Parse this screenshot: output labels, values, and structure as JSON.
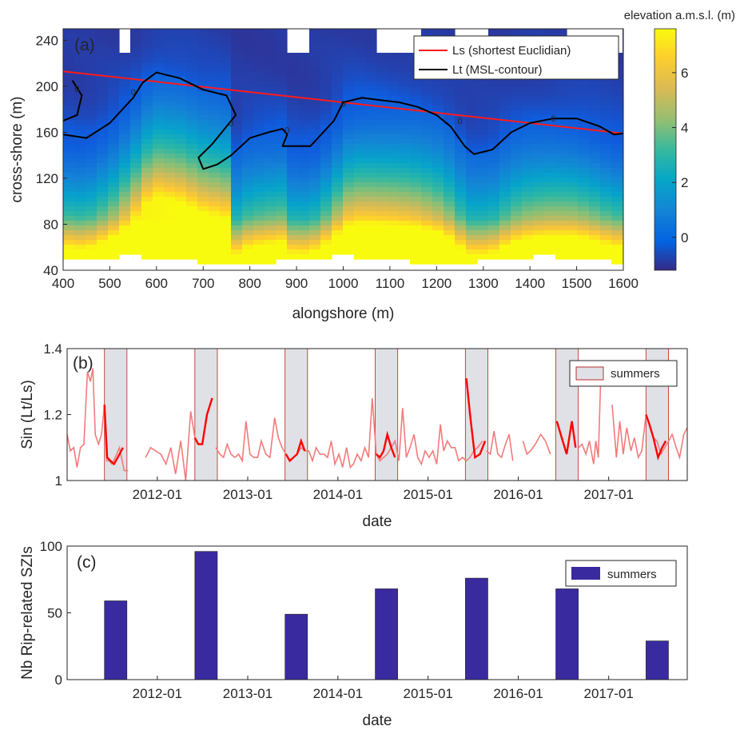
{
  "chart_data": [
    {
      "panel": "(a)",
      "type": "heatmap",
      "xlabel": "alongshore (m)",
      "ylabel": "cross-shore (m)",
      "xlim": [
        400,
        1600
      ],
      "ylim": [
        40,
        250
      ],
      "xticks": [
        400,
        500,
        600,
        700,
        800,
        900,
        1000,
        1100,
        1200,
        1300,
        1400,
        1500,
        1600
      ],
      "yticks": [
        40,
        80,
        120,
        160,
        200,
        240
      ],
      "colorbar": {
        "label": "elevation a.m.s.l. (m)",
        "range": [
          -1.2,
          7.6
        ],
        "ticks": [
          0,
          2,
          4,
          6
        ],
        "colormap": "parula"
      },
      "legend": [
        {
          "label": "Ls (shortest Euclidian)",
          "color": "#ff1a1a"
        },
        {
          "label": "Lt (MSL-contour)",
          "color": "#000000"
        }
      ],
      "contour_label": "0",
      "Ls": {
        "x": [
          400,
          1600
        ],
        "y": [
          213,
          159
        ]
      },
      "Lt": {
        "x": [
          400,
          450,
          500,
          550,
          570,
          600,
          650,
          700,
          750,
          770,
          720,
          690,
          700,
          730,
          760,
          800,
          840,
          870,
          880,
          870,
          930,
          980,
          1000,
          1040,
          1080,
          1120,
          1160,
          1200,
          1230,
          1260,
          1280,
          1320,
          1360,
          1400,
          1450,
          1500,
          1550,
          1580,
          1600
        ],
        "y": [
          158,
          155,
          168,
          190,
          203,
          212,
          207,
          197,
          192,
          175,
          150,
          138,
          128,
          132,
          140,
          155,
          160,
          163,
          158,
          148,
          148,
          170,
          186,
          190,
          188,
          186,
          182,
          175,
          165,
          148,
          141,
          145,
          160,
          168,
          172,
          172,
          165,
          158,
          159
        ]
      },
      "terrain_colors": [
        "#352a87",
        "#0f5cdd",
        "#1481d6",
        "#06a4ca",
        "#2eb7a4",
        "#87bf77",
        "#d1bb59",
        "#fec832",
        "#f9fb0e"
      ],
      "background_color": "#ffffff"
    },
    {
      "panel": "(b)",
      "type": "line",
      "xlabel": "date",
      "ylabel": "Sin (Lt/Ls)",
      "ylim": [
        1,
        1.4
      ],
      "yticks": [
        1,
        1.2,
        1.4
      ],
      "yticklabels": [
        "1",
        "1.2",
        "1.4"
      ],
      "xlim": [
        "2011-01-01",
        "2017-11-15"
      ],
      "xticks": [
        "2012-01-01",
        "2013-01-01",
        "2014-01-01",
        "2015-01-01",
        "2016-01-01",
        "2017-01-01"
      ],
      "xticklabels": [
        "2012-01",
        "2013-01",
        "2014-01",
        "2015-01",
        "2016-01",
        "2017-01"
      ],
      "legend": [
        {
          "label": "summers",
          "color": "#dfe1e6"
        }
      ],
      "summers": [
        [
          "2011-06-01",
          "2011-08-31"
        ],
        [
          "2012-06-01",
          "2012-08-31"
        ],
        [
          "2013-06-01",
          "2013-08-31"
        ],
        [
          "2014-06-01",
          "2014-08-31"
        ],
        [
          "2015-06-01",
          "2015-08-31"
        ],
        [
          "2016-06-01",
          "2016-08-31"
        ],
        [
          "2017-06-01",
          "2017-08-31"
        ]
      ],
      "series_all": {
        "color": "#f47a7a",
        "segments": [
          {
            "x": [
              "2011-01-01",
              "2011-01-14",
              "2011-01-28",
              "2011-02-10",
              "2011-02-24",
              "2011-03-10",
              "2011-03-24",
              "2011-04-05",
              "2011-04-15",
              "2011-04-25",
              "2011-05-08",
              "2011-05-20",
              "2011-06-01",
              "2011-06-10",
              "2011-06-20",
              "2011-07-01",
              "2011-07-15",
              "2011-08-01",
              "2011-08-20",
              "2011-09-05"
            ],
            "y": [
              1.14,
              1.09,
              1.1,
              1.04,
              1.1,
              1.11,
              1.33,
              1.3,
              1.34,
              1.14,
              1.11,
              1.14,
              1.23,
              1.06,
              1.06,
              1.05,
              1.07,
              1.1,
              1.03,
              1.03
            ]
          },
          {
            "x": [
              "2011-11-15",
              "2011-12-05",
              "2011-12-25",
              "2012-01-15",
              "2012-02-05",
              "2012-02-25",
              "2012-03-15",
              "2012-04-05",
              "2012-04-25",
              "2012-05-15",
              "2012-06-01",
              "2012-06-15",
              "2012-07-01",
              "2012-07-20",
              "2012-08-10"
            ],
            "y": [
              1.07,
              1.1,
              1.09,
              1.08,
              1.05,
              1.1,
              1.02,
              1.12,
              1.0,
              1.21,
              1.13,
              1.11,
              1.11,
              1.2,
              1.25
            ]
          },
          {
            "x": [
              "2012-08-25",
              "2012-09-10",
              "2012-09-25",
              "2012-10-10",
              "2012-10-25",
              "2012-11-10",
              "2012-11-25",
              "2012-12-10",
              "2012-12-25",
              "2013-01-10",
              "2013-01-25",
              "2013-02-10",
              "2013-02-25",
              "2013-03-15",
              "2013-04-01",
              "2013-04-20",
              "2013-05-05",
              "2013-05-20",
              "2013-06-05",
              "2013-06-20",
              "2013-07-05",
              "2013-07-20",
              "2013-08-05",
              "2013-08-20",
              "2013-09-05",
              "2013-09-20",
              "2013-10-05",
              "2013-10-20",
              "2013-11-05",
              "2013-11-20",
              "2013-12-05",
              "2013-12-20",
              "2014-01-05",
              "2014-01-20",
              "2014-02-05",
              "2014-02-20",
              "2014-03-05",
              "2014-03-20",
              "2014-04-05",
              "2014-04-20",
              "2014-05-05",
              "2014-05-20",
              "2014-06-05",
              "2014-06-20",
              "2014-07-05",
              "2014-07-20",
              "2014-08-05",
              "2014-08-20",
              "2014-09-05",
              "2014-09-20",
              "2014-10-05",
              "2014-10-20",
              "2014-11-05",
              "2014-11-20",
              "2014-12-05",
              "2014-12-20",
              "2015-01-05",
              "2015-01-20",
              "2015-02-05",
              "2015-02-20",
              "2015-03-05",
              "2015-03-20",
              "2015-04-05",
              "2015-04-20",
              "2015-05-05",
              "2015-05-20",
              "2015-06-05",
              "2015-06-20",
              "2015-07-05",
              "2015-07-20",
              "2015-08-10"
            ],
            "y": [
              1.1,
              1.08,
              1.07,
              1.11,
              1.08,
              1.07,
              1.08,
              1.06,
              1.18,
              1.08,
              1.07,
              1.07,
              1.12,
              1.08,
              1.07,
              1.19,
              1.13,
              1.1,
              1.08,
              1.06,
              1.07,
              1.08,
              1.1,
              1.09,
              1.09,
              1.06,
              1.1,
              1.08,
              1.08,
              1.07,
              1.12,
              1.05,
              1.08,
              1.04,
              1.1,
              1.04,
              1.05,
              1.08,
              1.06,
              1.1,
              1.07,
              1.25,
              1.08,
              1.06,
              1.07,
              1.08,
              1.1,
              1.12,
              1.06,
              1.22,
              1.07,
              1.1,
              1.14,
              1.07,
              1.05,
              1.09,
              1.07,
              1.09,
              1.05,
              1.17,
              1.09,
              1.12,
              1.1,
              1.1,
              1.06,
              1.07,
              1.06,
              1.07,
              1.09,
              1.1,
              1.12
            ]
          },
          {
            "x": [
              "2015-08-25",
              "2015-09-10",
              "2015-09-25",
              "2015-10-10",
              "2015-10-25",
              "2015-11-10",
              "2015-11-25",
              "2015-12-10"
            ],
            "y": [
              1.09,
              1.08,
              1.15,
              1.08,
              1.07,
              1.11,
              1.14,
              1.06
            ]
          },
          {
            "x": [
              "2016-01-20",
              "2016-02-05",
              "2016-02-20",
              "2016-03-10",
              "2016-04-01",
              "2016-04-20",
              "2016-05-10"
            ],
            "y": [
              1.12,
              1.08,
              1.09,
              1.11,
              1.14,
              1.12,
              1.08
            ]
          },
          {
            "x": [
              "2016-09-01",
              "2016-09-15",
              "2016-10-01",
              "2016-10-15",
              "2016-11-01",
              "2016-11-10",
              "2016-11-20",
              "2016-12-01"
            ],
            "y": [
              1.1,
              1.11,
              1.08,
              1.12,
              1.05,
              1.12,
              1.07,
              1.34
            ]
          },
          {
            "x": [
              "2017-01-15",
              "2017-02-01",
              "2017-02-15",
              "2017-03-01",
              "2017-03-15",
              "2017-04-01",
              "2017-04-15",
              "2017-05-01",
              "2017-05-15",
              "2017-06-01",
              "2017-06-15",
              "2017-07-01",
              "2017-07-15",
              "2017-08-01",
              "2017-08-15",
              "2017-09-01",
              "2017-09-15",
              "2017-10-01",
              "2017-10-15",
              "2017-11-01",
              "2017-11-15"
            ],
            "y": [
              1.23,
              1.07,
              1.18,
              1.08,
              1.16,
              1.09,
              1.13,
              1.07,
              1.09,
              1.2,
              1.17,
              1.13,
              1.12,
              1.08,
              1.1,
              1.12,
              1.14,
              1.1,
              1.07,
              1.14,
              1.16
            ]
          }
        ]
      },
      "series_summer": {
        "color": "#ff0000",
        "segments": [
          {
            "x": [
              "2011-06-01",
              "2011-06-12",
              "2011-06-25",
              "2011-07-10",
              "2011-07-25",
              "2011-08-15"
            ],
            "y": [
              1.23,
              1.07,
              1.06,
              1.05,
              1.07,
              1.1
            ]
          },
          {
            "x": [
              "2012-06-01",
              "2012-06-15",
              "2012-07-01",
              "2012-07-20",
              "2012-08-10"
            ],
            "y": [
              1.13,
              1.11,
              1.11,
              1.2,
              1.25
            ]
          },
          {
            "x": [
              "2013-06-05",
              "2013-06-20",
              "2013-07-05",
              "2013-07-20",
              "2013-08-05",
              "2013-08-20"
            ],
            "y": [
              1.08,
              1.06,
              1.07,
              1.08,
              1.12,
              1.09
            ]
          },
          {
            "x": [
              "2014-06-05",
              "2014-06-20",
              "2014-07-05",
              "2014-07-20",
              "2014-08-05",
              "2014-08-20"
            ],
            "y": [
              1.08,
              1.07,
              1.09,
              1.14,
              1.1,
              1.07
            ]
          },
          {
            "x": [
              "2015-06-05",
              "2015-06-20",
              "2015-07-10",
              "2015-07-30",
              "2015-08-20"
            ],
            "y": [
              1.31,
              1.2,
              1.07,
              1.08,
              1.12
            ]
          },
          {
            "x": [
              "2016-06-05",
              "2016-06-25",
              "2016-07-15",
              "2016-08-05",
              "2016-08-20"
            ],
            "y": [
              1.18,
              1.13,
              1.08,
              1.18,
              1.1
            ]
          },
          {
            "x": [
              "2017-06-01",
              "2017-06-15",
              "2017-07-01",
              "2017-07-20",
              "2017-08-05",
              "2017-08-20"
            ],
            "y": [
              1.2,
              1.17,
              1.13,
              1.07,
              1.1,
              1.12
            ]
          }
        ]
      }
    },
    {
      "panel": "(c)",
      "type": "bar",
      "xlabel": "date",
      "ylabel": "Nb Rip-related SZIs",
      "ylim": [
        0,
        100
      ],
      "yticks": [
        0,
        50,
        100
      ],
      "xlim": [
        "2011-01-01",
        "2017-11-15"
      ],
      "xticks": [
        "2012-01-01",
        "2013-01-01",
        "2014-01-01",
        "2015-01-01",
        "2016-01-01",
        "2017-01-01"
      ],
      "xticklabels": [
        "2012-01",
        "2013-01",
        "2014-01",
        "2015-01",
        "2016-01",
        "2017-01"
      ],
      "legend": [
        {
          "label": "summers",
          "color": "#3a2aa0"
        }
      ],
      "bar_color": "#3a2aa0",
      "bars": [
        {
          "start": "2011-06-01",
          "end": "2011-08-31",
          "value": 59
        },
        {
          "start": "2012-06-01",
          "end": "2012-08-31",
          "value": 96
        },
        {
          "start": "2013-06-01",
          "end": "2013-08-31",
          "value": 49
        },
        {
          "start": "2014-06-01",
          "end": "2014-08-31",
          "value": 68
        },
        {
          "start": "2015-06-01",
          "end": "2015-08-31",
          "value": 76
        },
        {
          "start": "2016-06-01",
          "end": "2016-08-31",
          "value": 68
        },
        {
          "start": "2017-06-01",
          "end": "2017-08-31",
          "value": 29
        }
      ]
    }
  ]
}
